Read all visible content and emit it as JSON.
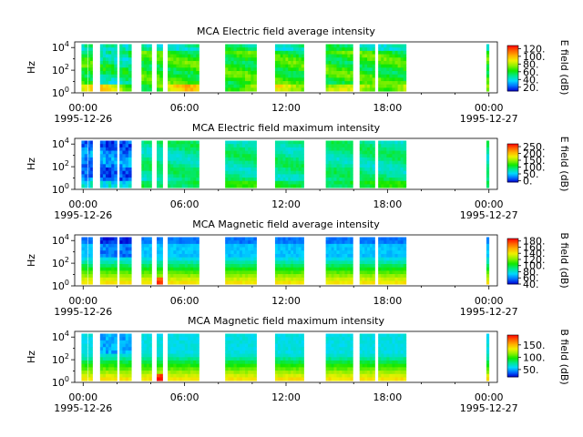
{
  "chart_data": {
    "type": "heatmap",
    "time_ticks": [
      "00:00",
      "06:00",
      "12:00",
      "18:00",
      "00:00"
    ],
    "date_start": "1995-12-26",
    "date_end": "1995-12-27",
    "x_range_hours": [
      -0.5,
      24.5
    ],
    "x_label_hours": [
      0,
      6,
      12,
      18,
      24
    ],
    "y_label": "Hz",
    "y_scale": "log",
    "y_range_log10": [
      0,
      4.5
    ],
    "y_tick_exponents": [
      "0",
      "2",
      "4"
    ],
    "data_intervals_hours": [
      [
        -0.1,
        0.25
      ],
      [
        0.3,
        0.55
      ],
      [
        1.0,
        2.0
      ],
      [
        2.15,
        2.85
      ],
      [
        3.45,
        4.05
      ],
      [
        4.35,
        4.7
      ],
      [
        5.0,
        6.85
      ],
      [
        8.4,
        10.25
      ],
      [
        11.35,
        13.05
      ],
      [
        14.35,
        15.95
      ],
      [
        16.35,
        17.25
      ],
      [
        17.45,
        19.1
      ],
      [
        23.85,
        24.0
      ]
    ],
    "colormap": [
      "#0000d0",
      "#0070ff",
      "#00d8ff",
      "#00e890",
      "#10e800",
      "#90f000",
      "#f0f000",
      "#ffb000",
      "#ff6000",
      "#ff0000"
    ],
    "panels": [
      {
        "title": "MCA  Electric field average intensity",
        "colorbar_label": "E field (dB)",
        "colorbar_ticks": [
          "20.",
          "40.",
          "60.",
          "80.",
          "100.",
          "120."
        ],
        "colorbar_range": [
          10,
          128
        ]
      },
      {
        "title": "MCA  Electric field maximum intensity",
        "colorbar_label": "E field (dB)",
        "colorbar_ticks": [
          "0.",
          "50.",
          "100.",
          "150.",
          "200.",
          "250."
        ],
        "colorbar_range": [
          -10,
          270
        ]
      },
      {
        "title": "MCA  Magnetic field average intensity",
        "colorbar_label": "B field (dB)",
        "colorbar_ticks": [
          "40.",
          "60.",
          "80.",
          "100.",
          "120.",
          "140.",
          "160.",
          "180."
        ],
        "colorbar_range": [
          40,
          188
        ]
      },
      {
        "title": "MCA  Magnetic field maximum intensity",
        "colorbar_label": "B field (dB)",
        "colorbar_ticks": [
          "50.",
          "100.",
          "150."
        ],
        "colorbar_range": [
          20,
          190
        ]
      }
    ]
  }
}
